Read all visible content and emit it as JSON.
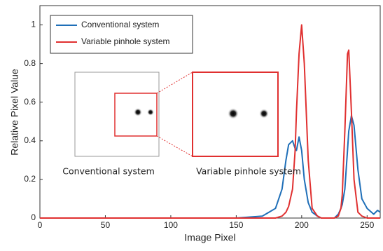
{
  "chart_data": {
    "type": "line",
    "x_label": "Image Pixel",
    "y_label": "Relative Pixel Value",
    "x": [
      0,
      150,
      170,
      180,
      185,
      188,
      190,
      193,
      195,
      196,
      198,
      200,
      202,
      205,
      208,
      212,
      215,
      225,
      228,
      230,
      231,
      233,
      235,
      236,
      238,
      240,
      243,
      246,
      250,
      255,
      258,
      260
    ],
    "series": [
      {
        "name": "Conventional system",
        "color": "#1f6fb8",
        "values": [
          0,
          0,
          0.01,
          0.05,
          0.15,
          0.3,
          0.38,
          0.4,
          0.36,
          0.35,
          0.42,
          0.35,
          0.2,
          0.08,
          0.03,
          0.01,
          0,
          0,
          0.02,
          0.05,
          0.07,
          0.15,
          0.35,
          0.45,
          0.53,
          0.48,
          0.25,
          0.1,
          0.05,
          0.02,
          0.04,
          0.03
        ]
      },
      {
        "name": "Variable pinhole system",
        "color": "#e03030",
        "values": [
          0,
          0,
          0,
          0,
          0.01,
          0.03,
          0.06,
          0.15,
          0.35,
          0.55,
          0.85,
          1,
          0.8,
          0.3,
          0.05,
          0.01,
          0,
          0,
          0.01,
          0.05,
          0.12,
          0.45,
          0.85,
          0.87,
          0.55,
          0.2,
          0.03,
          0.01,
          0,
          0,
          0,
          0
        ]
      }
    ],
    "xlim": [
      0,
      260
    ],
    "xticks": [
      0,
      50,
      100,
      150,
      200,
      250
    ],
    "ylim": [
      0,
      1.1
    ],
    "yticks": [
      0,
      0.2,
      0.4,
      0.6,
      0.8,
      1
    ],
    "legend": "upper left",
    "annotations": [
      "Conventional system",
      "Variable pinhole system"
    ]
  }
}
